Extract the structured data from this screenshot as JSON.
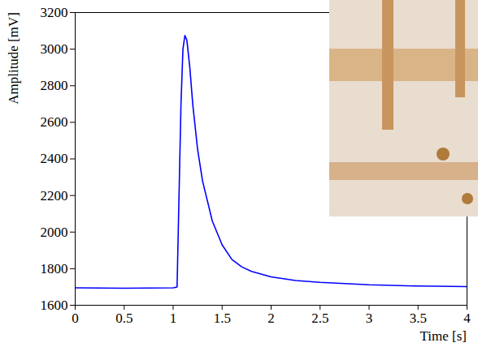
{
  "chart_data": {
    "type": "line",
    "x_label": "Time [s]",
    "y_label": "Amplitude [mV]",
    "x": [
      0,
      0.5,
      1.0,
      1.04,
      1.06,
      1.08,
      1.1,
      1.12,
      1.14,
      1.17,
      1.2,
      1.25,
      1.3,
      1.4,
      1.5,
      1.6,
      1.7,
      1.8,
      2.0,
      2.25,
      2.5,
      3.0,
      3.5,
      4.0
    ],
    "values": [
      1695,
      1693,
      1695,
      1700,
      2200,
      2700,
      3000,
      3075,
      3050,
      2900,
      2700,
      2450,
      2280,
      2060,
      1930,
      1850,
      1810,
      1785,
      1755,
      1735,
      1725,
      1712,
      1705,
      1702
    ],
    "color": "#0000ff",
    "xlim": [
      0,
      4
    ],
    "ylim": [
      1600,
      3200
    ],
    "xticks": [
      0,
      0.5,
      1,
      1.5,
      2,
      2.5,
      3,
      3.5,
      4
    ],
    "yticks": [
      1600,
      1800,
      2000,
      2200,
      2400,
      2600,
      2800,
      3000,
      3200
    ],
    "grid": false
  }
}
